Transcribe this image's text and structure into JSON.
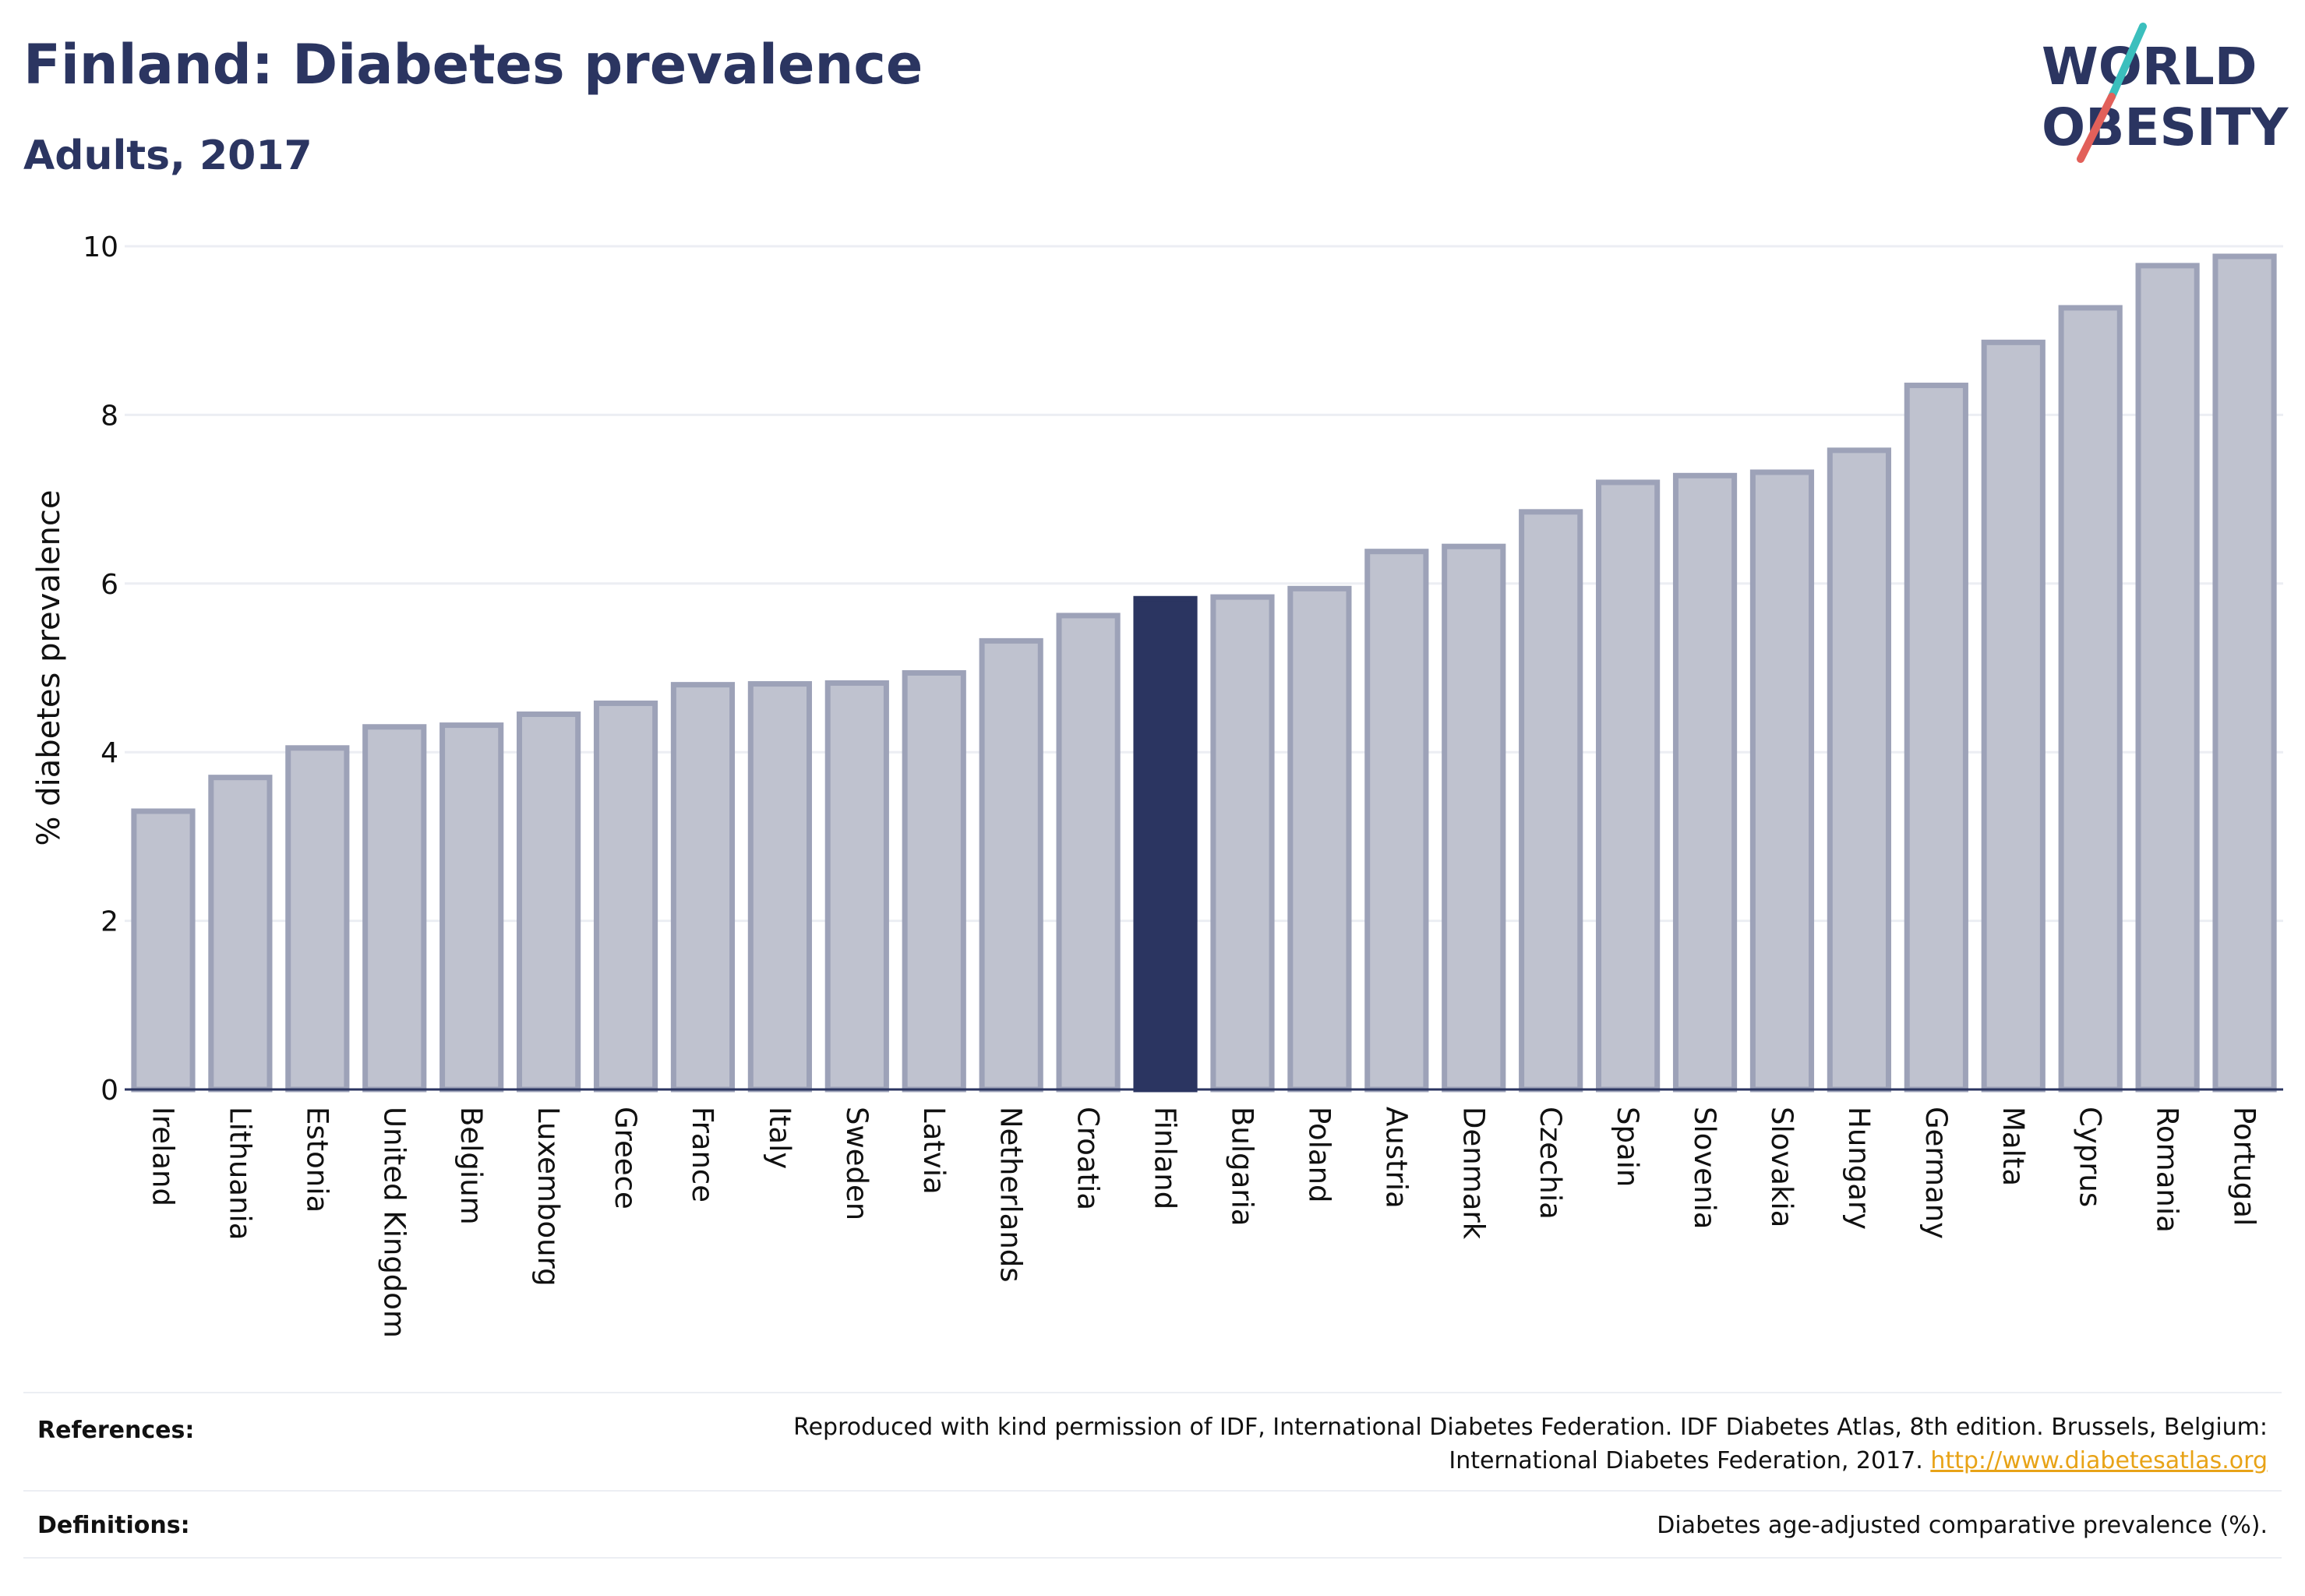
{
  "header": {
    "title": "Finland: Diabetes prevalence",
    "subtitle": "Adults, 2017"
  },
  "logo": {
    "line1": "WORLD",
    "line2": "OBESITY",
    "colors": {
      "text": "#2b3561",
      "slash_teal": "#3bbfbd",
      "slash_red": "#e2605a"
    }
  },
  "chart_data": {
    "type": "bar",
    "title": "Finland: Diabetes prevalence",
    "subtitle": "Adults, 2017",
    "xlabel": "",
    "ylabel": "% diabetes prevalence",
    "ylim": [
      0,
      10
    ],
    "yticks": [
      0,
      2,
      4,
      6,
      8,
      10
    ],
    "grid": true,
    "highlight": "Finland",
    "colors": {
      "bar": "#bfc2cf",
      "bar_border": "#9da2b8",
      "highlight": "#2b3561"
    },
    "categories": [
      "Ireland",
      "Lithuania",
      "Estonia",
      "United Kingdom",
      "Belgium",
      "Luxembourg",
      "Greece",
      "France",
      "Italy",
      "Sweden",
      "Latvia",
      "Netherlands",
      "Croatia",
      "Finland",
      "Bulgaria",
      "Poland",
      "Austria",
      "Denmark",
      "Czechia",
      "Spain",
      "Slovenia",
      "Slovakia",
      "Hungary",
      "Germany",
      "Malta",
      "Cyprus",
      "Romania",
      "Portugal"
    ],
    "values": [
      3.3,
      3.7,
      4.05,
      4.3,
      4.32,
      4.45,
      4.58,
      4.8,
      4.81,
      4.82,
      4.94,
      5.32,
      5.62,
      5.82,
      5.84,
      5.94,
      6.38,
      6.44,
      6.85,
      7.2,
      7.28,
      7.32,
      7.58,
      8.35,
      8.86,
      9.27,
      9.77,
      9.88
    ]
  },
  "footer": {
    "references_label": "References:",
    "references_line1": "Reproduced with kind permission of IDF, International Diabetes Federation. IDF Diabetes Atlas, 8th edition. Brussels, Belgium:",
    "references_line2": "International Diabetes Federation, 2017.",
    "references_link": "http://www.diabetesatlas.org",
    "definitions_label": "Definitions:",
    "definitions_text": "Diabetes age-adjusted comparative prevalence (%)."
  }
}
